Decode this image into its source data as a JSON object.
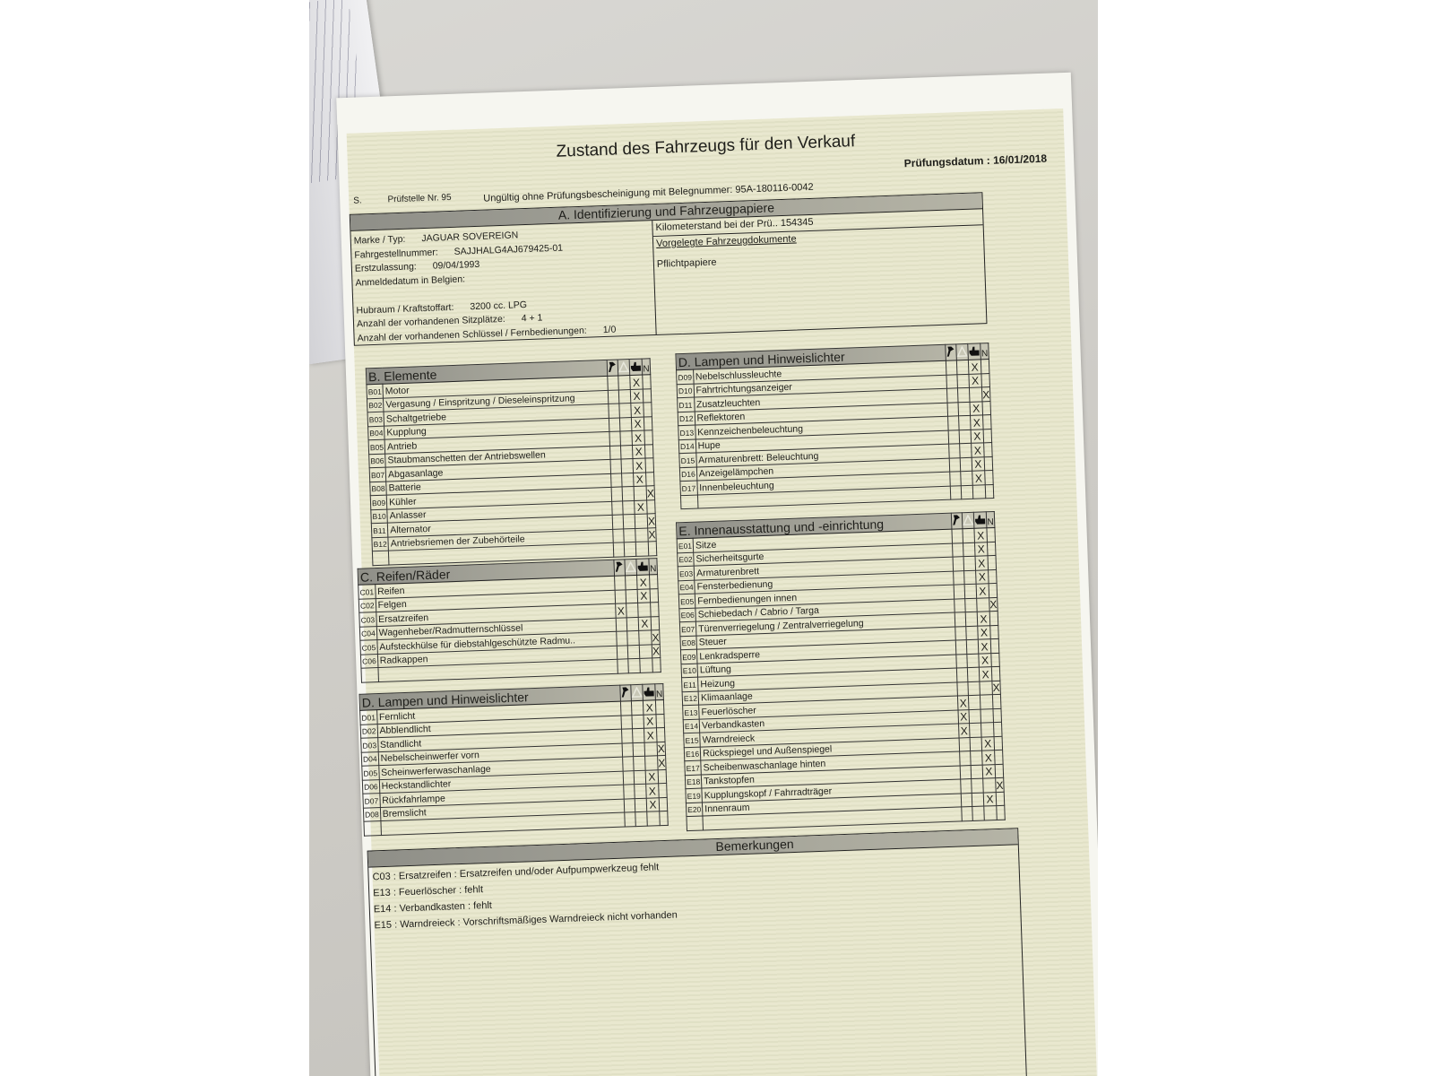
{
  "document": {
    "title": "Zustand des Fahrzeugs für den Verkauf",
    "date_label": "Prüfungsdatum :",
    "date_value": "16/01/2018",
    "station_prefix": "S.",
    "station": "Prüfstelle Nr. 95",
    "validity_note": "Ungültig ohne Prüfungsbescheinigung mit Belegnummer: 95A-180116-0042"
  },
  "section_a": {
    "title": "A. Identifizierung und Fahrzeugpapiere",
    "fields": [
      {
        "label": "Marke / Typ:",
        "value": "JAGUAR SOVEREIGN"
      },
      {
        "label": "Fahrgestellnummer:",
        "value": "SAJJHALG4AJ679425-01"
      },
      {
        "label": "Erstzulassung:",
        "value": "09/04/1993"
      },
      {
        "label": "Anmeldedatum in Belgien:",
        "value": ""
      },
      {
        "label": "",
        "value": ""
      },
      {
        "label": "Hubraum / Kraftstoffart:",
        "value": "3200 cc. LPG"
      },
      {
        "label": "Anzahl der vorhandenen Sitzplätze:",
        "value": "4 + 1"
      },
      {
        "label": "Anzahl der vorhandenen Schlüssel / Fernbedienungen:",
        "value": "1/0"
      }
    ],
    "odometer_label": "Kilometerstand bei der Prü..",
    "odometer_value": "154345",
    "documents_heading": "Vorgelegte Fahrzeugdokumente",
    "documents_item": "Pflichtpapiere"
  },
  "columns": {
    "icons": [
      "wrench-icon",
      "warning-triangle-icon",
      "thumbs-up-icon",
      "not-applicable"
    ],
    "na_label": "N",
    "mark": "X"
  },
  "tables": {
    "B": {
      "title": "B. Elemente",
      "items": [
        {
          "code": "B01",
          "label": "Motor",
          "mark": "ok"
        },
        {
          "code": "B02",
          "label": "Vergasung / Einspritzung / Dieseleinspritzung",
          "mark": "ok"
        },
        {
          "code": "B03",
          "label": "Schaltgetriebe",
          "mark": "ok"
        },
        {
          "code": "B04",
          "label": "Kupplung",
          "mark": "ok"
        },
        {
          "code": "B05",
          "label": "Antrieb",
          "mark": "ok"
        },
        {
          "code": "B06",
          "label": "Staubmanschetten der Antriebswellen",
          "mark": "ok"
        },
        {
          "code": "B07",
          "label": "Abgasanlage",
          "mark": "ok"
        },
        {
          "code": "B08",
          "label": "Batterie",
          "mark": "ok"
        },
        {
          "code": "B09",
          "label": "Kühler",
          "mark": "na"
        },
        {
          "code": "B10",
          "label": "Anlasser",
          "mark": "ok"
        },
        {
          "code": "B11",
          "label": "Alternator",
          "mark": "na"
        },
        {
          "code": "B12",
          "label": "Antriebsriemen der Zubehörteile",
          "mark": "na"
        }
      ]
    },
    "C": {
      "title": "C. Reifen/Räder",
      "items": [
        {
          "code": "C01",
          "label": "Reifen",
          "mark": "ok"
        },
        {
          "code": "C02",
          "label": "Felgen",
          "mark": "ok"
        },
        {
          "code": "C03",
          "label": "Ersatzreifen",
          "mark": "repair"
        },
        {
          "code": "C04",
          "label": "Wagenheber/Radmutternschlüssel",
          "mark": "ok"
        },
        {
          "code": "C05",
          "label": "Aufsteckhülse für diebstahlgeschützte Radmu..",
          "mark": "na"
        },
        {
          "code": "C06",
          "label": "Radkappen",
          "mark": "na"
        }
      ]
    },
    "D1": {
      "title": "D. Lampen und Hinweislichter",
      "items": [
        {
          "code": "D01",
          "label": "Fernlicht",
          "mark": "ok"
        },
        {
          "code": "D02",
          "label": "Abblendlicht",
          "mark": "ok"
        },
        {
          "code": "D03",
          "label": "Standlicht",
          "mark": "ok"
        },
        {
          "code": "D04",
          "label": "Nebelscheinwerfer vorn",
          "mark": "na"
        },
        {
          "code": "D05",
          "label": "Scheinwerferwaschanlage",
          "mark": "na"
        },
        {
          "code": "D06",
          "label": "Heckstandlichter",
          "mark": "ok"
        },
        {
          "code": "D07",
          "label": "Rückfahrlampe",
          "mark": "ok"
        },
        {
          "code": "D08",
          "label": "Bremslicht",
          "mark": "ok"
        }
      ]
    },
    "D2": {
      "title": "D. Lampen und Hinweislichter",
      "items": [
        {
          "code": "D09",
          "label": "Nebelschlussleuchte",
          "mark": "ok"
        },
        {
          "code": "D10",
          "label": "Fahrtrichtungsanzeiger",
          "mark": "ok"
        },
        {
          "code": "D11",
          "label": "Zusatzleuchten",
          "mark": "na"
        },
        {
          "code": "D12",
          "label": "Reflektoren",
          "mark": "ok"
        },
        {
          "code": "D13",
          "label": "Kennzeichenbeleuchtung",
          "mark": "ok"
        },
        {
          "code": "D14",
          "label": "Hupe",
          "mark": "ok"
        },
        {
          "code": "D15",
          "label": "Armaturenbrett: Beleuchtung",
          "mark": "ok"
        },
        {
          "code": "D16",
          "label": "Anzeigelämpchen",
          "mark": "ok"
        },
        {
          "code": "D17",
          "label": "Innenbeleuchtung",
          "mark": "ok"
        }
      ]
    },
    "E": {
      "title": "E. Innenausstattung und -einrichtung",
      "items": [
        {
          "code": "E01",
          "label": "Sitze",
          "mark": "ok"
        },
        {
          "code": "E02",
          "label": "Sicherheitsgurte",
          "mark": "ok"
        },
        {
          "code": "E03",
          "label": "Armaturenbrett",
          "mark": "ok"
        },
        {
          "code": "E04",
          "label": "Fensterbedienung",
          "mark": "ok"
        },
        {
          "code": "E05",
          "label": "Fernbedienungen innen",
          "mark": "ok"
        },
        {
          "code": "E06",
          "label": "Schiebedach / Cabrio / Targa",
          "mark": "na"
        },
        {
          "code": "E07",
          "label": "Türenverriegelung / Zentralverriegelung",
          "mark": "ok"
        },
        {
          "code": "E08",
          "label": "Steuer",
          "mark": "ok"
        },
        {
          "code": "E09",
          "label": "Lenkradsperre",
          "mark": "ok"
        },
        {
          "code": "E10",
          "label": "Lüftung",
          "mark": "ok"
        },
        {
          "code": "E11",
          "label": "Heizung",
          "mark": "ok"
        },
        {
          "code": "E12",
          "label": "Klimaanlage",
          "mark": "na"
        },
        {
          "code": "E13",
          "label": "Feuerlöscher",
          "mark": "repair"
        },
        {
          "code": "E14",
          "label": "Verbandkasten",
          "mark": "repair"
        },
        {
          "code": "E15",
          "label": "Warndreieck",
          "mark": "repair"
        },
        {
          "code": "E16",
          "label": "Rückspiegel und Außenspiegel",
          "mark": "ok"
        },
        {
          "code": "E17",
          "label": "Scheibenwaschanlage hinten",
          "mark": "ok"
        },
        {
          "code": "E18",
          "label": "Tankstopfen",
          "mark": "ok"
        },
        {
          "code": "E19",
          "label": "Kupplungskopf / Fahrradträger",
          "mark": "na"
        },
        {
          "code": "E20",
          "label": "Innenraum",
          "mark": "ok"
        }
      ]
    }
  },
  "remarks": {
    "title": "Bemerkungen",
    "lines": [
      "C03 : Ersatzreifen : Ersatzreifen und/oder Aufpumpwerkzeug fehlt",
      "E13 : Feuerlöscher : fehlt",
      "E14 : Verbandkasten : fehlt",
      "E15 : Warndreieck : Vorschriftsmäßiges Warndreieck nicht vorhanden"
    ]
  }
}
